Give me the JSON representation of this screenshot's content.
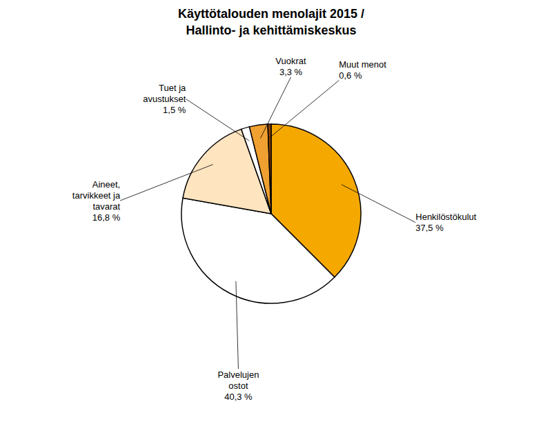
{
  "chart_data": {
    "type": "pie",
    "title": "Käyttötalouden menolajit 2015 /\nHallinto- ja kehittämiskeskus",
    "categories": [
      "Henkilöstökulut",
      "Palvelujen\nostot",
      "Aineet,\ntarvikkeet ja\ntavarat",
      "Tuet ja\navustukset",
      "Vuokrat",
      "Muut menot"
    ],
    "values": [
      37.5,
      40.3,
      16.8,
      1.5,
      3.3,
      0.6
    ],
    "value_labels": [
      "37,5 %",
      "40,3 %",
      "16,8 %",
      "1,5 %",
      "3,3 %",
      "0,6 %"
    ],
    "colors": [
      "#F5A800",
      "#FFFFFF",
      "#FFE4C0",
      "#FFFFFF",
      "#F0A030",
      "#8B4000"
    ],
    "data_labels": true
  }
}
